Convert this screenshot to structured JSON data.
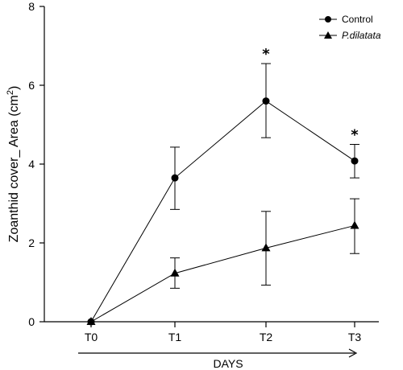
{
  "chart_data": {
    "type": "line",
    "categories": [
      "T0",
      "T1",
      "T2",
      "T3"
    ],
    "ylabel_main": "Zoanthid cover_ Area (cm",
    "ylabel_sup": "2",
    "ylabel_end": ")",
    "xlabel": "DAYS",
    "ylim": [
      0,
      8
    ],
    "yticks": [
      "0",
      "2",
      "4",
      "6",
      "8"
    ],
    "legend_position": "top-right",
    "series": [
      {
        "name": "Control",
        "marker": "circle",
        "values": [
          0,
          3.65,
          5.6,
          4.08
        ],
        "err_low": [
          0,
          2.85,
          4.67,
          3.65
        ],
        "err_high": [
          0,
          4.43,
          6.55,
          4.5
        ]
      },
      {
        "name": "P.dilatata",
        "marker": "triangle",
        "values": [
          0,
          1.23,
          1.87,
          2.44
        ],
        "err_low": [
          0,
          0.85,
          0.93,
          1.73
        ],
        "err_high": [
          0,
          1.62,
          2.8,
          3.12
        ]
      }
    ],
    "annotations": [
      {
        "text": "*",
        "category": "T2",
        "y": 6.55
      },
      {
        "text": "*",
        "category": "T3",
        "y": 4.5
      }
    ]
  }
}
